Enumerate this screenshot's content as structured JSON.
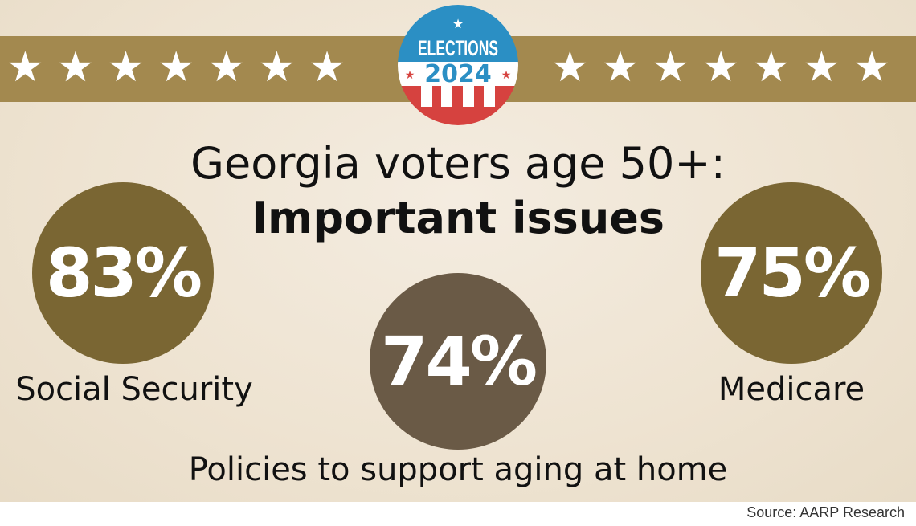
{
  "logo": {
    "line1": "ELECTIONS",
    "line2": "2024",
    "colors": {
      "blue": "#2b8fc4",
      "red": "#d6423f",
      "white": "#ffffff"
    }
  },
  "banner": {
    "star_icon": "star",
    "stars_left": "★★★★★★★",
    "stars_right": "★★★★★★★",
    "color": "#a3894f"
  },
  "title": {
    "line1": "Georgia voters age 50+:",
    "line2": "Important issues"
  },
  "issues": [
    {
      "value": "83%",
      "label": "Social Security",
      "color": "#7a6633"
    },
    {
      "value": "74%",
      "label": "Policies to support aging at home",
      "color": "#6a5a46"
    },
    {
      "value": "75%",
      "label": "Medicare",
      "color": "#7a6633"
    }
  ],
  "source": "Source: AARP Research"
}
